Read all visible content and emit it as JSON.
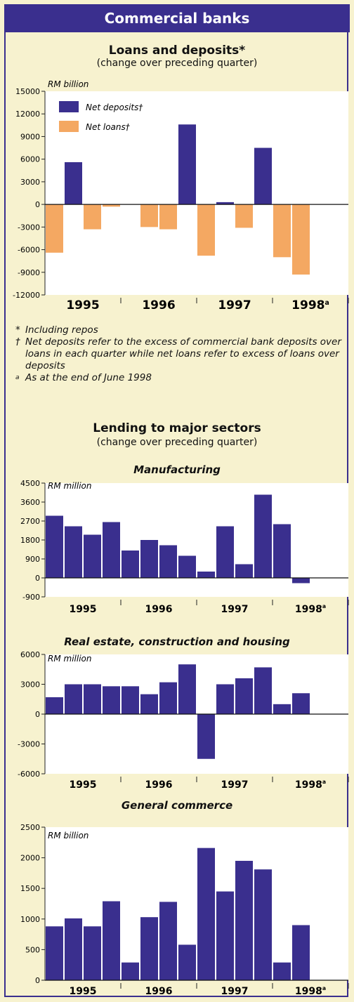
{
  "header": {
    "title": "Commercial banks"
  },
  "section1": {
    "title": "Loans and deposits*",
    "subtitle": "(change over preceding quarter)"
  },
  "notes": [
    {
      "mark": "*",
      "text": "Including repos"
    },
    {
      "mark": "†",
      "text": "Net deposits refer to the excess of commercial bank deposits over loans in each quarter while net loans refer to excess of loans over deposits"
    },
    {
      "mark": "a",
      "text": "As at the end of June 1998"
    }
  ],
  "section2": {
    "title": "Lending to major sectors",
    "subtitle": "(change over preceding quarter)"
  },
  "colors": {
    "navy": "#3a2f8e",
    "orange": "#f4a862",
    "cream": "#f7f2cf",
    "plot": "#ffffff"
  },
  "chart_data": [
    {
      "type": "bar",
      "title": "Loans and deposits*",
      "subtitle": "(change over preceding quarter)",
      "ylabel": "RM billion",
      "ylim": [
        -12000,
        15000
      ],
      "yticks": [
        15000,
        12000,
        9000,
        6000,
        3000,
        0,
        -3000,
        -6000,
        -9000,
        -12000
      ],
      "ytick_labels": [
        "15000",
        "12000",
        "9000",
        "6000",
        "3000",
        "0",
        "-3000",
        "-6000",
        "-9000",
        "-12000"
      ],
      "year_labels": [
        "1995",
        "1996",
        "1997",
        "1998a"
      ],
      "categories": [
        "1995 Q1",
        "1995 Q2",
        "1995 Q3",
        "1995 Q4",
        "1996 Q1",
        "1996 Q2",
        "1996 Q3",
        "1996 Q4",
        "1997 Q1",
        "1997 Q2",
        "1997 Q3",
        "1997 Q4",
        "1998 Q1",
        "1998 Q2"
      ],
      "legend": {
        "position": "top-left",
        "entries": [
          "Net deposits†",
          "Net loans†"
        ]
      },
      "series": [
        {
          "name": "Net deposits†",
          "color": "#3a2f8e",
          "values": [
            0,
            5600,
            0,
            0,
            0,
            0,
            0,
            10600,
            0,
            300,
            0,
            7500,
            0,
            0
          ]
        },
        {
          "name": "Net loans†",
          "color": "#f4a862",
          "values": [
            -6400,
            0,
            -3300,
            -300,
            0,
            -3000,
            -3300,
            0,
            -6800,
            0,
            -3100,
            0,
            -7000,
            -9300
          ]
        }
      ]
    },
    {
      "type": "bar",
      "title": "Manufacturing",
      "ylabel": "RM million",
      "ylim": [
        -900,
        4500
      ],
      "yticks": [
        4500,
        3600,
        2700,
        1800,
        900,
        0,
        -900
      ],
      "ytick_labels": [
        "4500",
        "3600",
        "2700",
        "1800",
        "900",
        "0",
        "-900"
      ],
      "year_labels": [
        "1995",
        "1996",
        "1997",
        "1998a"
      ],
      "categories": [
        "1995 Q1",
        "1995 Q2",
        "1995 Q3",
        "1995 Q4",
        "1996 Q1",
        "1996 Q2",
        "1996 Q3",
        "1996 Q4",
        "1997 Q1",
        "1997 Q2",
        "1997 Q3",
        "1997 Q4",
        "1998 Q1",
        "1998 Q2"
      ],
      "series": [
        {
          "name": "",
          "color": "#3a2f8e",
          "values": [
            2950,
            2450,
            2050,
            2650,
            1300,
            1800,
            1550,
            1050,
            300,
            2450,
            650,
            3950,
            2550,
            -250
          ]
        }
      ]
    },
    {
      "type": "bar",
      "title": "Real estate, construction and housing",
      "ylabel": "RM million",
      "ylim": [
        -6000,
        6000
      ],
      "yticks": [
        6000,
        3000,
        0,
        -3000,
        -6000
      ],
      "ytick_labels": [
        "6000",
        "3000",
        "0",
        "-3000",
        "-6000"
      ],
      "year_labels": [
        "1995",
        "1996",
        "1997",
        "1998a"
      ],
      "categories": [
        "1995 Q1",
        "1995 Q2",
        "1995 Q3",
        "1995 Q4",
        "1996 Q1",
        "1996 Q2",
        "1996 Q3",
        "1996 Q4",
        "1997 Q1",
        "1997 Q2",
        "1997 Q3",
        "1997 Q4",
        "1998 Q1",
        "1998 Q2"
      ],
      "series": [
        {
          "name": "",
          "color": "#3a2f8e",
          "values": [
            1700,
            3000,
            3000,
            2800,
            2800,
            2000,
            3200,
            5000,
            -4500,
            3000,
            3600,
            4700,
            1000,
            2100
          ]
        }
      ]
    },
    {
      "type": "bar",
      "title": "General commerce",
      "ylabel": "RM billion",
      "ylim": [
        0,
        2500
      ],
      "yticks": [
        2500,
        2000,
        1500,
        1000,
        500,
        0
      ],
      "ytick_labels": [
        "2500",
        "2000",
        "1500",
        "1000",
        "500",
        "0"
      ],
      "year_labels": [
        "1995",
        "1996",
        "1997",
        "1998a"
      ],
      "categories": [
        "1995 Q1",
        "1995 Q2",
        "1995 Q3",
        "1995 Q4",
        "1996 Q1",
        "1996 Q2",
        "1996 Q3",
        "1996 Q4",
        "1997 Q1",
        "1997 Q2",
        "1997 Q3",
        "1997 Q4",
        "1998 Q1",
        "1998 Q2"
      ],
      "series": [
        {
          "name": "",
          "color": "#3a2f8e",
          "values": [
            880,
            1010,
            880,
            1290,
            290,
            1030,
            1280,
            580,
            2160,
            1450,
            1950,
            1810,
            290,
            900
          ]
        }
      ]
    }
  ]
}
